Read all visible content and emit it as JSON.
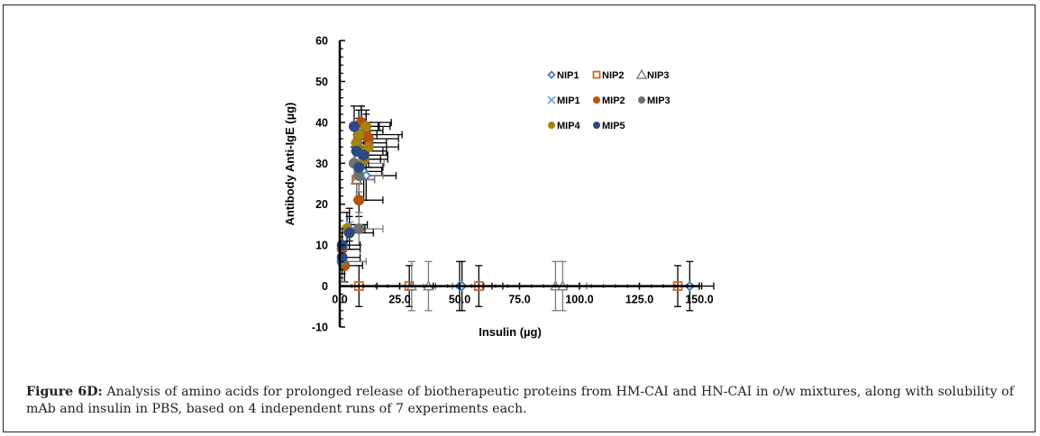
{
  "figure": {
    "label": "Figure 6D:",
    "caption": " Analysis of amino acids for prolonged release of biotherapeutic proteins from HM-CAI and HN-CAI in o/w mixtures, along with solubility of mAb and insulin in PBS, based on 4 independent runs of 7 experiments each."
  },
  "chart_data": {
    "type": "scatter",
    "title": "",
    "xlabel": "Insulin (µg)",
    "ylabel": "Antibody Anti-IgE (µg)",
    "xlim": [
      0,
      150
    ],
    "ylim": [
      -10,
      60
    ],
    "xticks": [
      "0.0",
      "25.0",
      "50.0",
      "75.0",
      "100.0",
      "125.0",
      "150.0"
    ],
    "xtick_values": [
      0,
      25,
      50,
      75,
      100,
      125,
      150
    ],
    "yticks": [
      "-10",
      "0",
      "10",
      "20",
      "30",
      "40",
      "50",
      "60"
    ],
    "ytick_values": [
      -10,
      0,
      10,
      20,
      30,
      40,
      50,
      60
    ],
    "grid": false,
    "legend_position": "top-right-inside",
    "series": [
      {
        "name": "NIP1",
        "marker": "diamond-open",
        "color": "#4a7ab8",
        "points": [
          [
            7,
            31,
            4,
            6
          ],
          [
            10,
            28,
            3,
            7
          ],
          [
            11,
            27,
            5,
            6
          ],
          [
            50,
            0,
            4,
            6
          ],
          [
            51,
            0,
            5,
            6
          ],
          [
            146,
            0,
            4,
            6
          ]
        ]
      },
      {
        "name": "NIP2",
        "marker": "square-open",
        "color": "#c8692a",
        "points": [
          [
            8,
            0,
            3,
            5
          ],
          [
            29,
            0,
            4,
            5
          ],
          [
            58,
            0,
            4,
            5
          ],
          [
            141,
            0,
            4,
            5
          ],
          [
            7,
            26,
            3,
            5
          ]
        ]
      },
      {
        "name": "NIP3",
        "marker": "triangle-open",
        "color": "#7f7f7f",
        "points": [
          [
            30,
            0,
            4,
            6
          ],
          [
            37,
            0,
            4,
            6
          ],
          [
            90,
            0,
            4,
            6
          ],
          [
            93,
            0,
            4,
            6
          ],
          [
            7,
            26,
            3,
            5
          ]
        ]
      },
      {
        "name": "MIP1",
        "marker": "x",
        "color": "#6fa8dc",
        "points": [
          [
            4,
            15,
            3,
            4
          ],
          [
            8,
            38,
            4,
            5
          ],
          [
            9,
            39,
            3,
            5
          ]
        ]
      },
      {
        "name": "MIP2",
        "marker": "circle",
        "color": "#b5520f",
        "points": [
          [
            2,
            5,
            3,
            4
          ],
          [
            1,
            9,
            3,
            4
          ],
          [
            8,
            21,
            4,
            4
          ],
          [
            9,
            40,
            5,
            4
          ],
          [
            11,
            37,
            6,
            5
          ],
          [
            12,
            36,
            5,
            4
          ]
        ]
      },
      {
        "name": "MIP3",
        "marker": "circle",
        "color": "#707070",
        "points": [
          [
            1,
            6,
            4,
            5
          ],
          [
            8,
            14,
            4,
            4
          ],
          [
            6,
            30,
            5,
            5
          ],
          [
            8,
            27,
            4,
            4
          ]
        ]
      },
      {
        "name": "MIP4",
        "marker": "circle",
        "color": "#a58211",
        "points": [
          [
            3,
            14,
            3,
            4
          ],
          [
            7,
            35,
            5,
            4
          ],
          [
            8,
            33,
            4,
            5
          ],
          [
            11,
            39,
            4,
            4
          ],
          [
            12,
            34,
            5,
            5
          ],
          [
            8,
            37,
            3,
            4
          ],
          [
            10,
            31,
            4,
            4
          ]
        ]
      },
      {
        "name": "MIP5",
        "marker": "circle",
        "color": "#2b4a85",
        "points": [
          [
            1,
            10,
            3,
            4
          ],
          [
            1,
            7,
            3,
            4
          ],
          [
            4,
            13,
            4,
            4
          ],
          [
            6,
            39,
            4,
            5
          ],
          [
            7,
            33,
            5,
            4
          ],
          [
            10,
            32,
            4,
            5
          ],
          [
            8,
            29,
            4,
            4
          ]
        ]
      }
    ]
  }
}
